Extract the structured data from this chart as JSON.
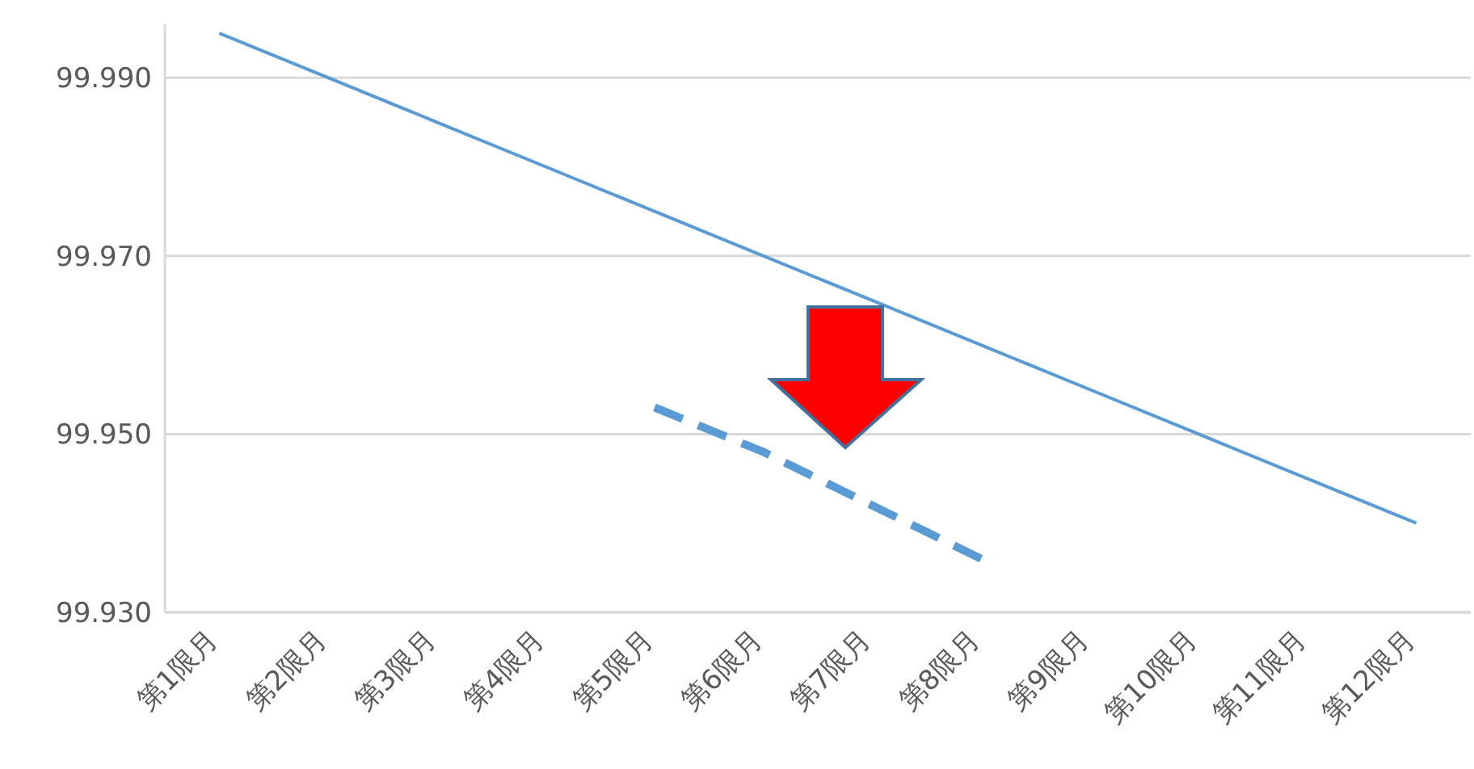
{
  "chart_data": {
    "type": "line",
    "categories": [
      "第1限月",
      "第2限月",
      "第3限月",
      "第4限月",
      "第5限月",
      "第6限月",
      "第7限月",
      "第8限月",
      "第9限月",
      "第10限月",
      "第11限月",
      "第12限月"
    ],
    "series": [
      {
        "color": "#5b9bd5",
        "line_style": "solid",
        "values": [
          99.995,
          99.99,
          99.985,
          99.98,
          99.975,
          99.97,
          99.965,
          99.96,
          99.955,
          99.95,
          99.945,
          99.94
        ]
      },
      {
        "color": "#5b9bd5",
        "line_style": "dashed",
        "values": [
          null,
          null,
          null,
          null,
          99.953,
          99.948,
          99.942,
          99.936,
          null,
          null,
          null,
          null
        ]
      }
    ],
    "ylim": [
      99.93,
      99.996
    ],
    "yticks": [
      {
        "value": 99.93,
        "label": "99.930"
      },
      {
        "value": 99.95,
        "label": "99.950"
      },
      {
        "value": 99.97,
        "label": "99.970"
      },
      {
        "value": 99.99,
        "label": "99.990"
      }
    ],
    "grid": "y",
    "marker": "none"
  }
}
